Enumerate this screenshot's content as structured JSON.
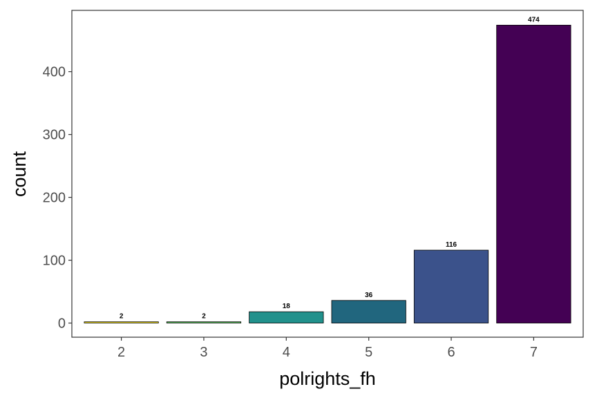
{
  "chart_data": {
    "type": "bar",
    "categories": [
      "2",
      "3",
      "4",
      "5",
      "6",
      "7"
    ],
    "values": [
      2,
      2,
      18,
      36,
      116,
      474
    ],
    "data_labels": [
      "2",
      "2",
      "18",
      "36",
      "116",
      "474"
    ],
    "colors": [
      "#fde725",
      "#5ec962",
      "#21918c",
      "#21667e",
      "#3b528b",
      "#440154"
    ],
    "xlabel": "polrights_fh",
    "ylabel": "count",
    "yticks": [
      0,
      100,
      200,
      300,
      400
    ],
    "ylim": [
      -22.5,
      497.5
    ],
    "grid": false,
    "legend": "none"
  }
}
